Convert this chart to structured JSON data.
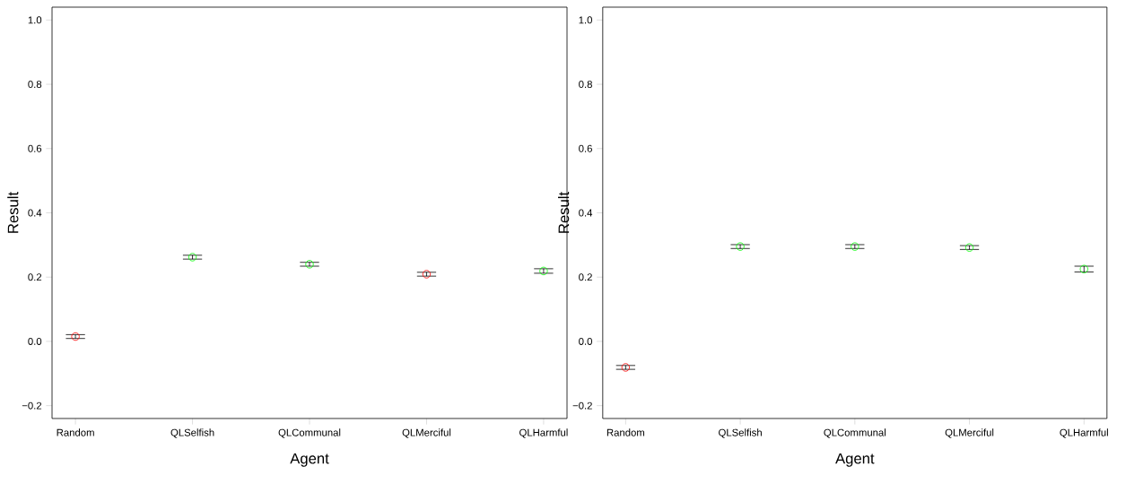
{
  "chart_data": [
    {
      "type": "scatter",
      "xlabel": "Agent",
      "ylabel": "Result",
      "categories": [
        "Random",
        "QLSelfish",
        "QLCommunal",
        "QLMerciful",
        "QLHarmful"
      ],
      "values": [
        0.015,
        0.262,
        0.24,
        0.209,
        0.219
      ],
      "errors": [
        0.006,
        0.006,
        0.006,
        0.006,
        0.007
      ],
      "colors": [
        "#ff0000",
        "#00ff00",
        "#00ff00",
        "#ff0000",
        "#00ff00"
      ],
      "marker": "circle",
      "ylim": [
        -0.24,
        1.04
      ],
      "yticks": [
        {
          "value": -0.2,
          "label": "−0.2"
        },
        {
          "value": 0,
          "label": "0.0"
        },
        {
          "value": 0.2,
          "label": "0.2"
        },
        {
          "value": 0.4,
          "label": "0.4"
        },
        {
          "value": 0.6,
          "label": "0.6"
        },
        {
          "value": 0.8,
          "label": "0.8"
        },
        {
          "value": 1,
          "label": "1.0"
        }
      ],
      "grid": false
    },
    {
      "type": "scatter",
      "xlabel": "Agent",
      "ylabel": "Result",
      "categories": [
        "Random",
        "QLSelfish",
        "QLCommunal",
        "QLMerciful",
        "QLHarmful"
      ],
      "values": [
        -0.081,
        0.295,
        0.295,
        0.292,
        0.225
      ],
      "errors": [
        0.006,
        0.006,
        0.006,
        0.006,
        0.009
      ],
      "colors": [
        "#ff0000",
        "#00ff00",
        "#00ff00",
        "#00ff00",
        "#00ff00"
      ],
      "marker": "circle",
      "ylim": [
        -0.24,
        1.04
      ],
      "yticks": [
        {
          "value": -0.2,
          "label": "−0.2"
        },
        {
          "value": 0,
          "label": "0.0"
        },
        {
          "value": 0.2,
          "label": "0.2"
        },
        {
          "value": 0.4,
          "label": "0.4"
        },
        {
          "value": 0.6,
          "label": "0.6"
        },
        {
          "value": 0.8,
          "label": "0.8"
        },
        {
          "value": 1,
          "label": "1.0"
        }
      ],
      "grid": false
    }
  ]
}
